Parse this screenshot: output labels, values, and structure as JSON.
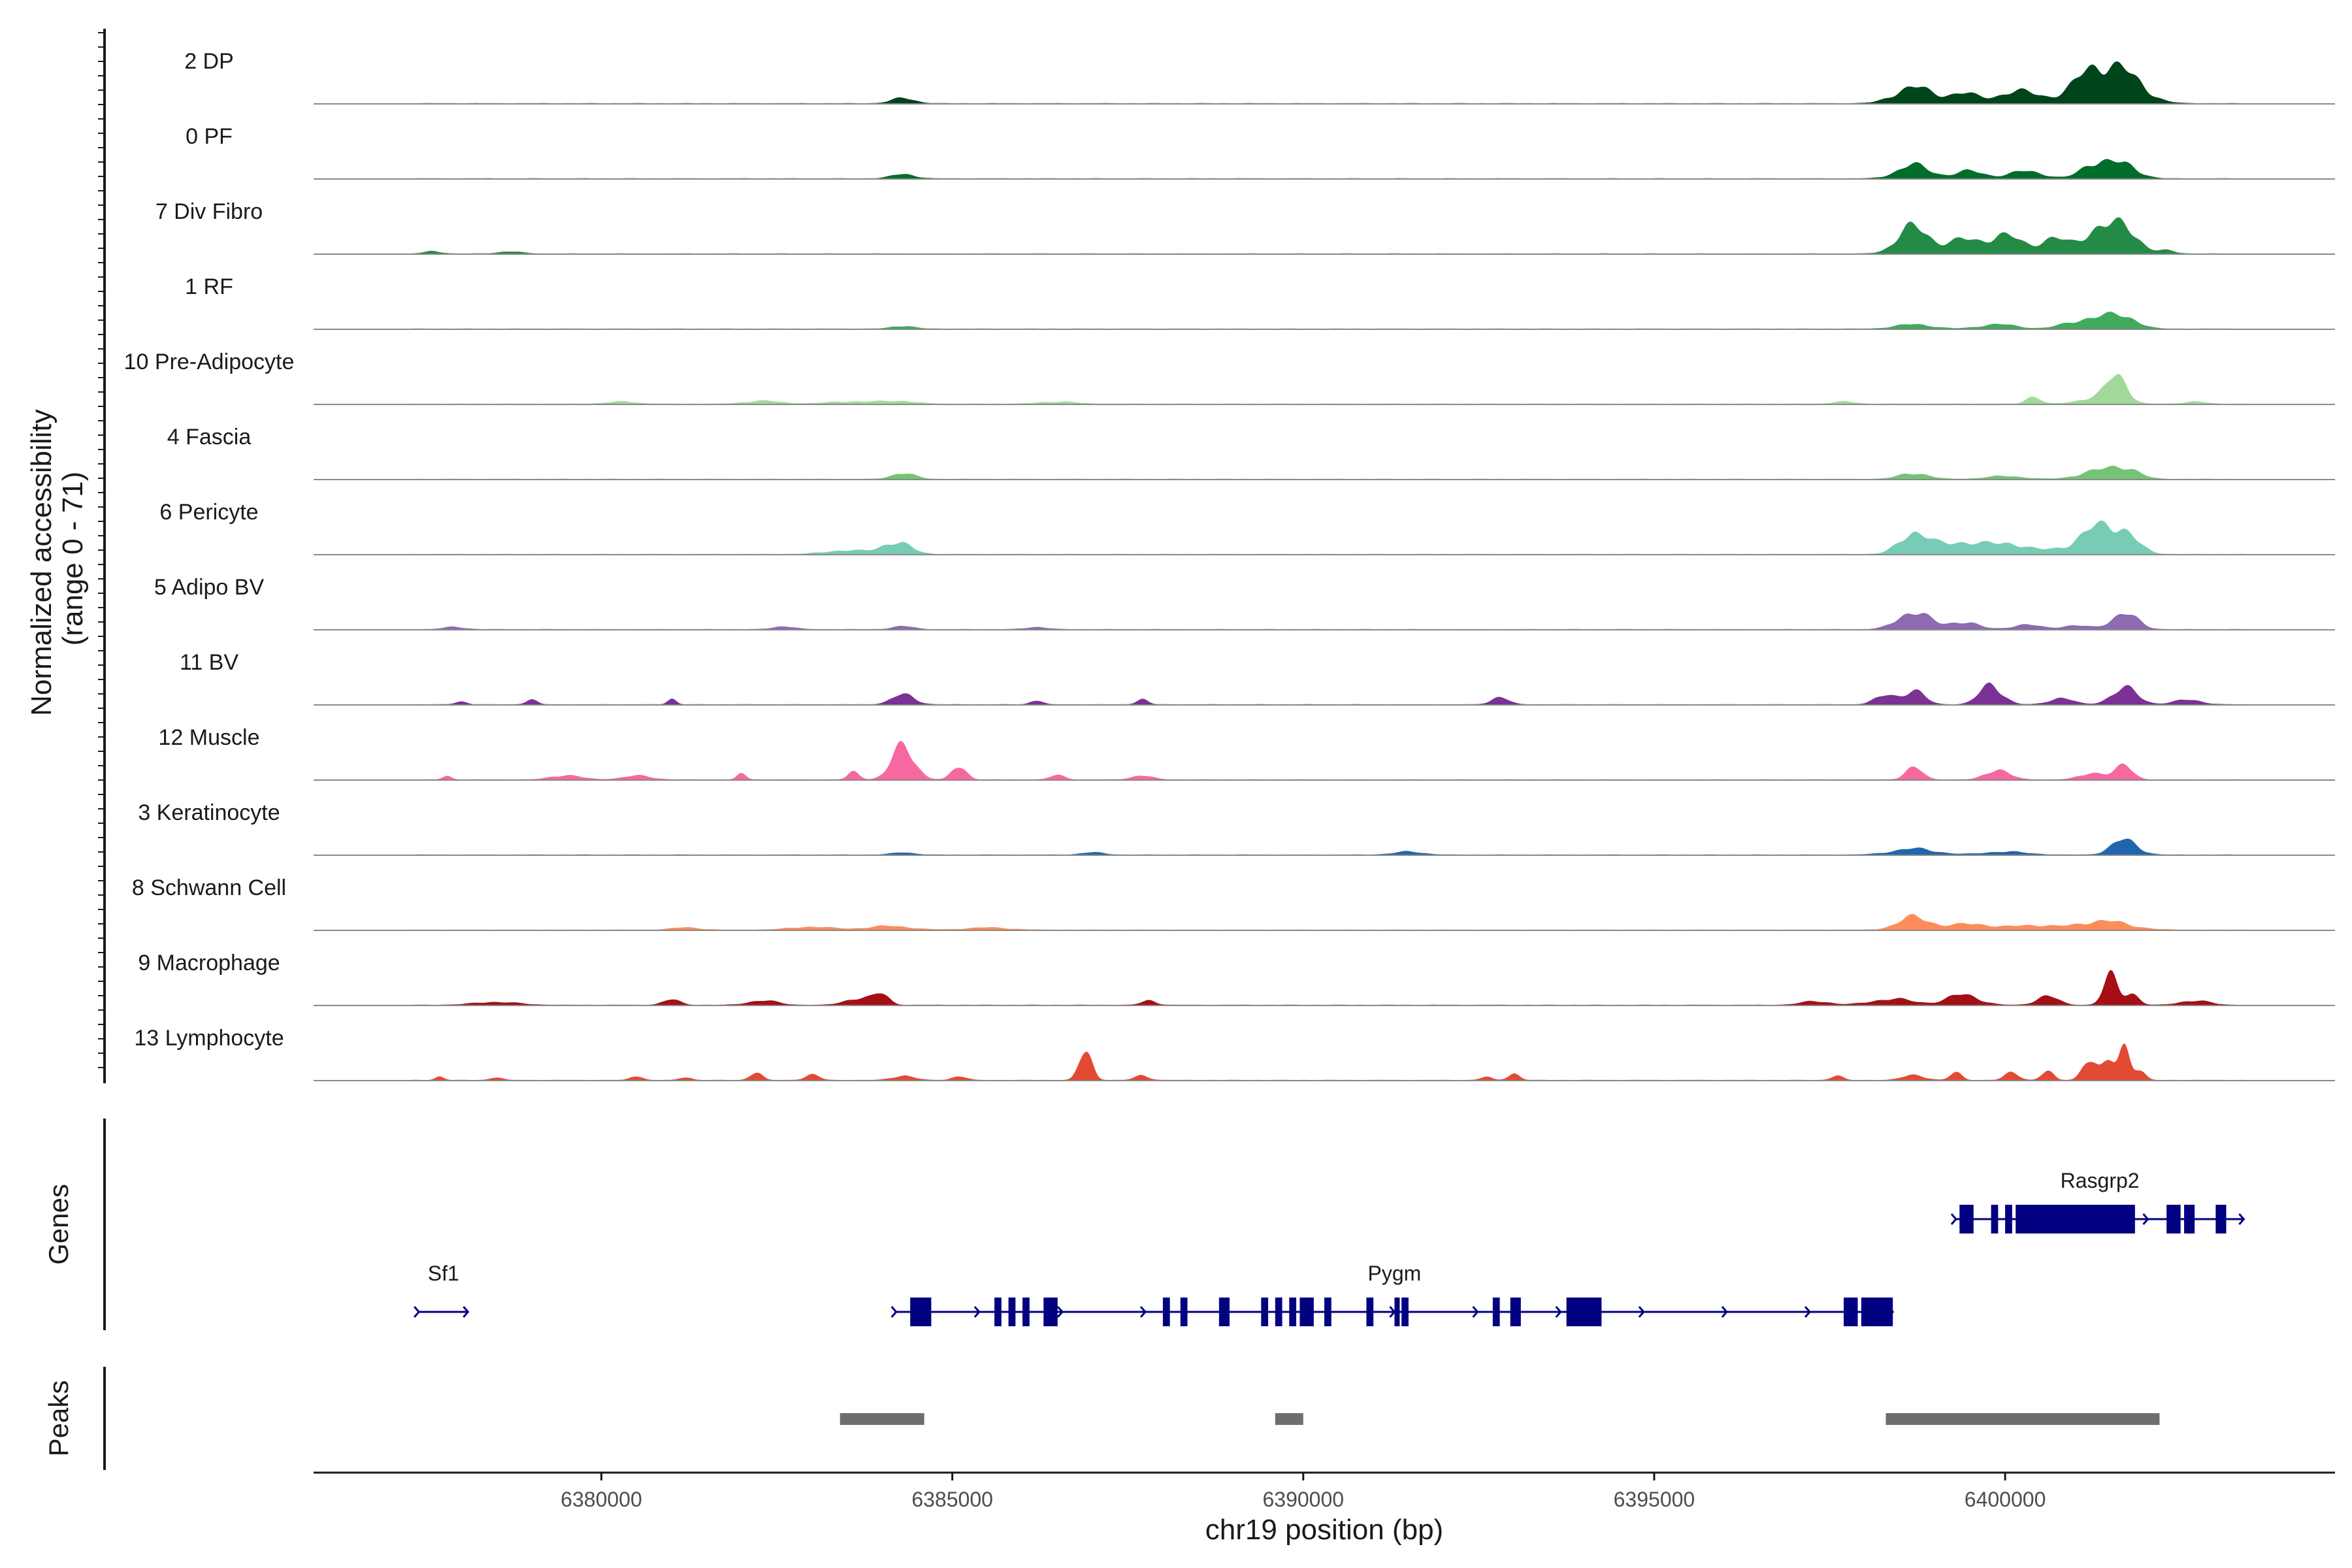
{
  "chart_data": {
    "type": "genome-track",
    "title": "",
    "xlabel": "chr19 position (bp)",
    "ylabel": "Normalized accessibility\n(range 0 - 71)",
    "ylabel_line1": "Normalized accessibility",
    "ylabel_line2": "(range 0 - 71)",
    "y_range": [
      0,
      71
    ],
    "x_range": [
      6375900,
      6404700
    ],
    "x_ticks": [
      6380000,
      6385000,
      6390000,
      6395000,
      6400000
    ],
    "x_tick_labels": [
      "6380000",
      "6385000",
      "6390000",
      "6395000",
      "6400000"
    ],
    "data_start": 6377300,
    "data_end": 6403400,
    "tracks": [
      {
        "label": "2 DP",
        "color": "#00441b",
        "peaks": [
          [
            6384300,
            7,
            160
          ],
          [
            6398700,
            22,
            260
          ],
          [
            6399400,
            13,
            200
          ],
          [
            6400200,
            16,
            300
          ],
          [
            6401200,
            28,
            220
          ],
          [
            6401700,
            30,
            260
          ],
          [
            6401400,
            17,
            400
          ]
        ]
      },
      {
        "label": "0 PF",
        "color": "#006d2c",
        "peaks": [
          [
            6384300,
            6,
            160
          ],
          [
            6398700,
            18,
            230
          ],
          [
            6399500,
            10,
            200
          ],
          [
            6400300,
            10,
            230
          ],
          [
            6401300,
            21,
            200
          ],
          [
            6401700,
            17,
            200
          ]
        ]
      },
      {
        "label": "7 Div Fibro",
        "color": "#238b45",
        "peaks": [
          [
            6377600,
            3,
            120
          ],
          [
            6378700,
            3,
            150
          ],
          [
            6398700,
            36,
            220
          ],
          [
            6399400,
            18,
            220
          ],
          [
            6400000,
            24,
            240
          ],
          [
            6400700,
            20,
            200
          ],
          [
            6401300,
            30,
            200
          ],
          [
            6401700,
            34,
            200
          ],
          [
            6402300,
            4,
            120
          ]
        ]
      },
      {
        "label": "1 RF",
        "color": "#41ab5d",
        "peaks": [
          [
            6384300,
            4,
            150
          ],
          [
            6398700,
            6,
            250
          ],
          [
            6399900,
            6,
            250
          ],
          [
            6400900,
            5,
            200
          ],
          [
            6401300,
            14,
            220
          ],
          [
            6401700,
            15,
            200
          ]
        ]
      },
      {
        "label": "10 Pre-Adipocyte",
        "color": "#a1d99b",
        "peaks": [
          [
            6380300,
            3,
            200
          ],
          [
            6382300,
            4,
            250
          ],
          [
            6383500,
            3,
            300
          ],
          [
            6384200,
            4,
            250
          ],
          [
            6386500,
            3,
            250
          ],
          [
            6397700,
            3,
            150
          ],
          [
            6400400,
            10,
            100
          ],
          [
            6401600,
            36,
            140
          ],
          [
            6401300,
            8,
            250
          ],
          [
            6402700,
            3,
            150
          ]
        ]
      },
      {
        "label": "4 Fascia",
        "color": "#74c476",
        "peaks": [
          [
            6384300,
            8,
            160
          ],
          [
            6398700,
            8,
            200
          ],
          [
            6400000,
            4,
            250
          ],
          [
            6401300,
            10,
            250
          ],
          [
            6401700,
            14,
            200
          ]
        ]
      },
      {
        "label": "6 Pericyte",
        "color": "#78ccb5",
        "peaks": [
          [
            6384200,
            16,
            200
          ],
          [
            6383500,
            5,
            300
          ],
          [
            6398700,
            28,
            200
          ],
          [
            6399400,
            16,
            350
          ],
          [
            6400100,
            12,
            250
          ],
          [
            6401300,
            34,
            250
          ],
          [
            6401700,
            24,
            200
          ],
          [
            6400700,
            5,
            200
          ]
        ]
      },
      {
        "label": "5 Adipo BV",
        "color": "#8c6bb1",
        "peaks": [
          [
            6377900,
            3,
            150
          ],
          [
            6382600,
            4,
            150
          ],
          [
            6384300,
            4,
            150
          ],
          [
            6386200,
            3,
            150
          ],
          [
            6398700,
            24,
            220
          ],
          [
            6399400,
            10,
            200
          ],
          [
            6400300,
            6,
            200
          ],
          [
            6401000,
            5,
            200
          ],
          [
            6401700,
            22,
            180
          ]
        ]
      },
      {
        "label": "11 BV",
        "color": "#7b3294",
        "peaks": [
          [
            6378000,
            4,
            80
          ],
          [
            6379000,
            6,
            80
          ],
          [
            6381000,
            8,
            60
          ],
          [
            6384300,
            13,
            160
          ],
          [
            6386200,
            6,
            80
          ],
          [
            6387700,
            7,
            80
          ],
          [
            6392800,
            10,
            120
          ],
          [
            6398300,
            12,
            150
          ],
          [
            6398700,
            18,
            150
          ],
          [
            6399800,
            26,
            160
          ],
          [
            6400800,
            9,
            160
          ],
          [
            6401700,
            22,
            180
          ],
          [
            6402600,
            6,
            200
          ]
        ]
      },
      {
        "label": "12 Muscle",
        "color": "#f768a1",
        "peaks": [
          [
            6377800,
            5,
            60
          ],
          [
            6379500,
            6,
            200
          ],
          [
            6380500,
            5,
            200
          ],
          [
            6382000,
            8,
            60
          ],
          [
            6383600,
            10,
            80
          ],
          [
            6384300,
            44,
            160
          ],
          [
            6385100,
            18,
            100
          ],
          [
            6386500,
            6,
            100
          ],
          [
            6387700,
            5,
            150
          ],
          [
            6398700,
            16,
            120
          ],
          [
            6399900,
            14,
            160
          ],
          [
            6401300,
            9,
            200
          ],
          [
            6401700,
            17,
            120
          ]
        ]
      },
      {
        "label": "3 Keratinocyte",
        "color": "#2166ac",
        "peaks": [
          [
            6384300,
            3,
            150
          ],
          [
            6387000,
            3,
            150
          ],
          [
            6391500,
            4,
            200
          ],
          [
            6398700,
            8,
            300
          ],
          [
            6400000,
            4,
            300
          ],
          [
            6401700,
            20,
            180
          ]
        ]
      },
      {
        "label": "8 Schwann Cell",
        "color": "#fc8d59",
        "peaks": [
          [
            6381200,
            3,
            200
          ],
          [
            6383000,
            4,
            300
          ],
          [
            6384100,
            5,
            300
          ],
          [
            6385500,
            3,
            300
          ],
          [
            6398700,
            17,
            220
          ],
          [
            6399500,
            8,
            300
          ],
          [
            6400400,
            6,
            300
          ],
          [
            6401400,
            12,
            350
          ]
        ]
      },
      {
        "label": "9 Macrophage",
        "color": "#a50f15",
        "peaks": [
          [
            6378500,
            4,
            300
          ],
          [
            6381000,
            7,
            120
          ],
          [
            6382300,
            6,
            200
          ],
          [
            6383700,
            10,
            200
          ],
          [
            6384000,
            12,
            100
          ],
          [
            6387800,
            6,
            100
          ],
          [
            6397300,
            5,
            200
          ],
          [
            6398400,
            8,
            300
          ],
          [
            6399400,
            14,
            220
          ],
          [
            6400600,
            12,
            150
          ],
          [
            6401500,
            38,
            100
          ],
          [
            6401800,
            16,
            100
          ],
          [
            6402700,
            6,
            200
          ]
        ]
      },
      {
        "label": "13 Lymphocyte",
        "color": "#e34a33",
        "peaks": [
          [
            6377700,
            5,
            60
          ],
          [
            6378500,
            4,
            80
          ],
          [
            6380500,
            6,
            80
          ],
          [
            6381200,
            4,
            80
          ],
          [
            6382200,
            11,
            80
          ],
          [
            6383000,
            7,
            100
          ],
          [
            6384300,
            6,
            150
          ],
          [
            6385100,
            5,
            100
          ],
          [
            6386900,
            38,
            90
          ],
          [
            6387700,
            6,
            100
          ],
          [
            6392600,
            4,
            80
          ],
          [
            6393000,
            9,
            80
          ],
          [
            6397600,
            6,
            80
          ],
          [
            6398700,
            7,
            150
          ],
          [
            6399300,
            10,
            80
          ],
          [
            6400100,
            10,
            100
          ],
          [
            6400600,
            12,
            80
          ],
          [
            6401200,
            28,
            100
          ],
          [
            6401500,
            25,
            100
          ],
          [
            6401700,
            45,
            70
          ],
          [
            6401900,
            15,
            80
          ]
        ]
      }
    ],
    "genes_title": "Genes",
    "genes": [
      {
        "name": "Sf1",
        "start": 6377400,
        "end": 6378100,
        "strand": "+",
        "row": 2,
        "exons": []
      },
      {
        "name": "Pygm",
        "start": 6384200,
        "end": 6398400,
        "strand": "+",
        "row": 2,
        "exons": [
          [
            6384400,
            6384700
          ],
          [
            6385600,
            6385700
          ],
          [
            6385800,
            6385900
          ],
          [
            6386000,
            6386100
          ],
          [
            6386300,
            6386500
          ],
          [
            6388000,
            6388100
          ],
          [
            6388250,
            6388350
          ],
          [
            6388800,
            6388950
          ],
          [
            6389400,
            6389500
          ],
          [
            6389600,
            6389700
          ],
          [
            6389800,
            6389900
          ],
          [
            6389950,
            6390150
          ],
          [
            6390300,
            6390400
          ],
          [
            6390900,
            6391000
          ],
          [
            6391300,
            6391350
          ],
          [
            6391400,
            6391500
          ],
          [
            6392700,
            6392800
          ],
          [
            6392950,
            6393100
          ],
          [
            6393750,
            6394250
          ],
          [
            6397700,
            6397900
          ],
          [
            6397950,
            6398000
          ],
          [
            6398000,
            6398400
          ]
        ]
      },
      {
        "name": "Rasgrp2",
        "start": 6399300,
        "end": 6403400,
        "strand": "+",
        "row": 1,
        "exons": [
          [
            6399350,
            6399550
          ],
          [
            6399800,
            6399900
          ],
          [
            6400000,
            6400100
          ],
          [
            6400150,
            6401850
          ],
          [
            6402300,
            6402500
          ],
          [
            6402550,
            6402700
          ],
          [
            6403000,
            6403150
          ]
        ]
      }
    ],
    "peaks_title": "Peaks",
    "peak_regions": [
      [
        6383400,
        6384600
      ],
      [
        6389600,
        6390000
      ],
      [
        6398300,
        6402200
      ]
    ],
    "colors": {
      "gene": "#000080",
      "peak": "#6e6e6e",
      "axis": "#1a1a1a",
      "baseline": "#8a8a8a"
    }
  }
}
